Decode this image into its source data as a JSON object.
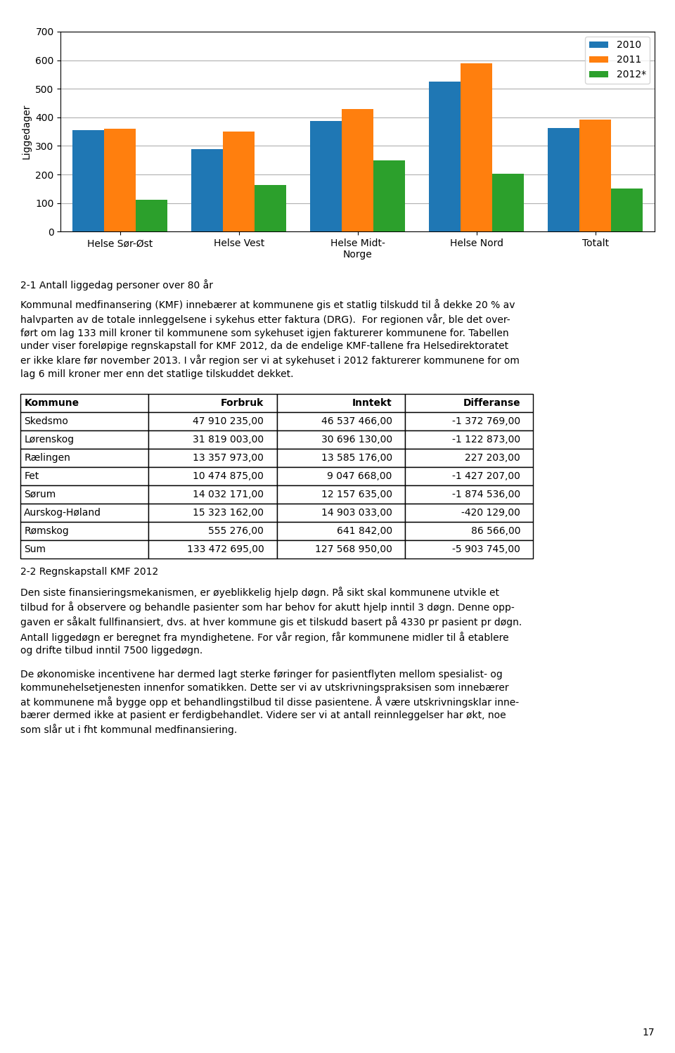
{
  "chart_data": [
    {
      "type": "bar",
      "categories": [
        "Helse Sør-Øst",
        "Helse Vest",
        "Helse Midt-\nNorge",
        "Helse Nord",
        "Totalt"
      ],
      "series": [
        {
          "name": "2010",
          "values": [
            355,
            288,
            388,
            525,
            363
          ]
        },
        {
          "name": "2011",
          "values": [
            360,
            350,
            428,
            590,
            392
          ]
        },
        {
          "name": "2012*",
          "values": [
            112,
            163,
            250,
            202,
            150
          ]
        }
      ],
      "ylabel": "Liggedager",
      "ylim": [
        0,
        700
      ],
      "yticks": [
        0,
        100,
        200,
        300,
        400,
        500,
        600,
        700
      ],
      "grid": true,
      "legend": "upper right",
      "annotations": [
        "2-1 Antall liggedag personer over 80 år",
        "Kommunal medfinansering (KMF) innebærer at kommunene gis et statlig tilskudd til å dekke 20 % av\nhalvparten av de totale innleggelsene i sykehus etter faktura (DRG).  For regionen vår, ble det over-\nført om lag 133 mill kroner til kommunene som sykehuset igjen fakturerer kommunene for. Tabellen\nunder viser foreløpige regnskapstall for KMF 2012, da de endelige KMF-tallene fra Helsedirektoratet\ner ikke klare før november 2013. I vår region ser vi at sykehuset i 2012 fakturerer kommunene for om\nlag 6 mill kroner mer enn det statlige tilskuddet dekket."
      ]
    },
    {
      "type": "table",
      "columns": [
        "Kommune",
        "Forbruk",
        "Inntekt",
        "Differanse"
      ],
      "rows": [
        [
          "Skedsmo",
          "47 910 235,00",
          "46 537 466,00",
          "-1 372 769,00"
        ],
        [
          "Lørenskog",
          "31 819 003,00",
          "30 696 130,00",
          "-1 122 873,00"
        ],
        [
          "Rælingen",
          "13 357 973,00",
          "13 585 176,00",
          "227 203,00"
        ],
        [
          "Fet",
          "10 474 875,00",
          "9 047 668,00",
          "-1 427 207,00"
        ],
        [
          "Sørum",
          "14 032 171,00",
          "12 157 635,00",
          "-1 874 536,00"
        ],
        [
          "Aurskog-Høland",
          "15 323 162,00",
          "14 903 033,00",
          "-420 129,00"
        ],
        [
          "Rømskog",
          "555 276,00",
          "641 842,00",
          "86 566,00"
        ],
        [
          "Sum",
          "133 472 695,00",
          "127 568 950,00",
          "-5 903 745,00"
        ]
      ],
      "annotations": [
        "2-2 Regnskapstall KMF 2012",
        "Den siste finansieringsmekanismen, er øyeblikkelig hjelp døgn. På sikt skal kommunene utvikle et\ntilbud for å observere og behandle pasienter som har behov for akutt hjelp inntil 3 døgn. Denne opp-\ngaven er såkalt fullfinansiert, dvs. at hver kommune gis et tilskudd basert på 4330 pr pasient pr døgn.\nAntall liggedøgn er beregnet fra myndighetene. For vår region, får kommunene midler til å etablere\nog drifte tilbud inntil 7500 liggedøgn.",
        "De økonomiske incentivene har dermed lagt sterke føringer for pasientflyten mellom spesialist- og\nkommunehelsetjenesten innenfor somatikken. Dette ser vi av utskrivningspraksisen som innebærer\nat kommunene må bygge opp et behandlingstilbud til disse pasientene. Å være utskrivningsklar inne-\nbærer dermed ikke at pasient er ferdigbehandlet. Videre ser vi at antall reinnleggelser har økt, noe\nsom slår ut i fht kommunal medfinansiering.",
        "17"
      ]
    }
  ]
}
